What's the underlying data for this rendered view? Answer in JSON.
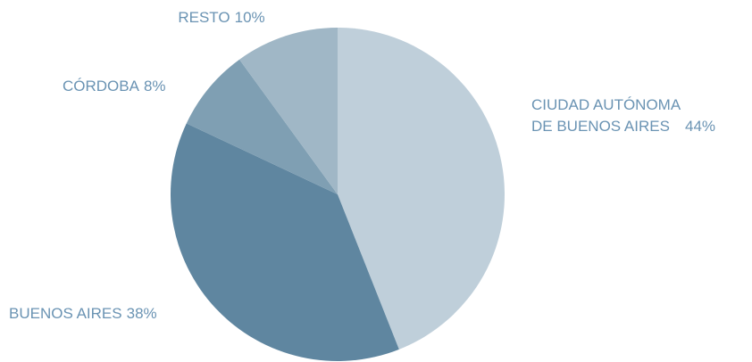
{
  "chart_data": {
    "type": "pie",
    "categories": [
      "CIUDAD AUTÓNOMA DE BUENOS AIRES",
      "BUENOS AIRES",
      "CÓRDOBA",
      "RESTO"
    ],
    "values": [
      44,
      38,
      8,
      10
    ],
    "value_labels": [
      "44%",
      "38%",
      "8%",
      "10%"
    ],
    "colors": [
      "#bfcfda",
      "#5f86a0",
      "#7f9fb3",
      "#a0b7c6"
    ]
  }
}
